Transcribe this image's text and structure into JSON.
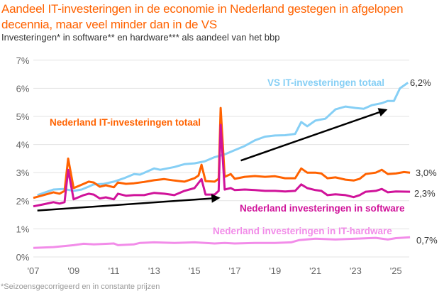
{
  "title": "Aandeel IT-investeringen in de economie in Nederland gestegen in afgelopen decennia, maar veel minder dan in de VS",
  "subtitle": "Investeringen* in software** en hardware*** als aandeel van het bbp",
  "footnote": "*Seizoensgecorrigeerd en in constante prijzen",
  "chart_data": {
    "type": "line",
    "xlim": [
      2007,
      2025.7
    ],
    "ylim": [
      0,
      7
    ],
    "grid": true,
    "yticks": [
      0,
      1,
      2,
      3,
      4,
      5,
      6,
      7
    ],
    "ytick_labels": [
      "0%",
      "1%",
      "2%",
      "3%",
      "4%",
      "5%",
      "6%",
      "7%"
    ],
    "xticks": [
      2007,
      2009,
      2011,
      2013,
      2015,
      2017,
      2019,
      2021,
      2023,
      2025
    ],
    "xtick_labels": [
      "'07",
      "'09",
      "'11",
      "'13",
      "'15",
      "'17",
      "'19",
      "'21",
      "'23",
      "'25"
    ],
    "series": [
      {
        "name": "VS IT-investeringen totaal",
        "color": "#86CFF5",
        "end_label": "6,2%",
        "points": [
          [
            2007.2,
            2.2
          ],
          [
            2007.6,
            2.3
          ],
          [
            2008,
            2.4
          ],
          [
            2008.5,
            2.42
          ],
          [
            2009,
            2.35
          ],
          [
            2009.4,
            2.4
          ],
          [
            2010,
            2.58
          ],
          [
            2010.5,
            2.6
          ],
          [
            2011,
            2.68
          ],
          [
            2011.5,
            2.8
          ],
          [
            2012,
            2.95
          ],
          [
            2012.3,
            2.93
          ],
          [
            2013,
            3.15
          ],
          [
            2013.3,
            3.1
          ],
          [
            2014,
            3.2
          ],
          [
            2014.5,
            3.3
          ],
          [
            2015,
            3.33
          ],
          [
            2015.5,
            3.4
          ],
          [
            2016,
            3.55
          ],
          [
            2016.5,
            3.65
          ],
          [
            2017,
            3.8
          ],
          [
            2017.5,
            3.95
          ],
          [
            2018,
            4.15
          ],
          [
            2018.5,
            4.28
          ],
          [
            2019,
            4.32
          ],
          [
            2019.5,
            4.33
          ],
          [
            2020,
            4.38
          ],
          [
            2020.3,
            4.8
          ],
          [
            2020.6,
            4.65
          ],
          [
            2021,
            4.85
          ],
          [
            2021.5,
            4.92
          ],
          [
            2022,
            5.25
          ],
          [
            2022.5,
            5.35
          ],
          [
            2023,
            5.3
          ],
          [
            2023.4,
            5.27
          ],
          [
            2023.8,
            5.4
          ],
          [
            2024.3,
            5.47
          ],
          [
            2024.6,
            5.55
          ],
          [
            2024.9,
            5.55
          ],
          [
            2025.2,
            6.0
          ],
          [
            2025.6,
            6.2
          ]
        ]
      },
      {
        "name": "Nederland IT-investeringen totaal",
        "color": "#FF6200",
        "end_label": "3,0%",
        "points": [
          [
            2007,
            2.1
          ],
          [
            2007.5,
            2.2
          ],
          [
            2008,
            2.3
          ],
          [
            2008.3,
            2.25
          ],
          [
            2008.55,
            2.35
          ],
          [
            2008.73,
            3.5
          ],
          [
            2009,
            2.45
          ],
          [
            2009.5,
            2.6
          ],
          [
            2009.75,
            2.68
          ],
          [
            2010,
            2.65
          ],
          [
            2010.3,
            2.5
          ],
          [
            2010.6,
            2.55
          ],
          [
            2011,
            2.48
          ],
          [
            2011.2,
            2.65
          ],
          [
            2011.6,
            2.6
          ],
          [
            2012,
            2.62
          ],
          [
            2012.5,
            2.67
          ],
          [
            2013,
            2.73
          ],
          [
            2013.5,
            2.77
          ],
          [
            2014,
            2.72
          ],
          [
            2014.5,
            2.68
          ],
          [
            2015,
            2.8
          ],
          [
            2015.2,
            2.9
          ],
          [
            2015.35,
            3.28
          ],
          [
            2015.55,
            2.7
          ],
          [
            2016,
            2.68
          ],
          [
            2016.2,
            2.78
          ],
          [
            2016.3,
            5.3
          ],
          [
            2016.5,
            2.85
          ],
          [
            2016.8,
            2.95
          ],
          [
            2017,
            2.78
          ],
          [
            2017.5,
            2.85
          ],
          [
            2018,
            2.88
          ],
          [
            2018.5,
            2.85
          ],
          [
            2019,
            2.87
          ],
          [
            2019.5,
            2.8
          ],
          [
            2020,
            2.8
          ],
          [
            2020.3,
            3.15
          ],
          [
            2020.6,
            3.0
          ],
          [
            2021,
            3.0
          ],
          [
            2021.3,
            2.97
          ],
          [
            2021.6,
            2.8
          ],
          [
            2022,
            2.83
          ],
          [
            2022.5,
            2.75
          ],
          [
            2022.9,
            2.72
          ],
          [
            2023.2,
            2.78
          ],
          [
            2023.5,
            2.95
          ],
          [
            2024,
            3.0
          ],
          [
            2024.3,
            3.1
          ],
          [
            2024.6,
            2.95
          ],
          [
            2025,
            2.97
          ],
          [
            2025.4,
            3.02
          ],
          [
            2025.7,
            3.0
          ]
        ]
      },
      {
        "name": "Nederland investeringen in software",
        "color": "#D0139A",
        "end_label": "2,3%",
        "points": [
          [
            2007,
            1.8
          ],
          [
            2007.5,
            1.87
          ],
          [
            2008,
            1.95
          ],
          [
            2008.3,
            1.9
          ],
          [
            2008.55,
            1.95
          ],
          [
            2008.73,
            3.1
          ],
          [
            2009,
            2.05
          ],
          [
            2009.5,
            2.2
          ],
          [
            2009.75,
            2.25
          ],
          [
            2010,
            2.22
          ],
          [
            2010.3,
            2.08
          ],
          [
            2010.6,
            2.12
          ],
          [
            2011,
            2.05
          ],
          [
            2011.2,
            2.25
          ],
          [
            2011.6,
            2.18
          ],
          [
            2012,
            2.2
          ],
          [
            2012.5,
            2.2
          ],
          [
            2013,
            2.28
          ],
          [
            2013.5,
            2.25
          ],
          [
            2014,
            2.2
          ],
          [
            2014.5,
            2.35
          ],
          [
            2015,
            2.45
          ],
          [
            2015.35,
            2.77
          ],
          [
            2015.55,
            2.22
          ],
          [
            2016,
            2.22
          ],
          [
            2016.2,
            2.35
          ],
          [
            2016.3,
            4.7
          ],
          [
            2016.5,
            2.4
          ],
          [
            2016.8,
            2.45
          ],
          [
            2017,
            2.38
          ],
          [
            2017.5,
            2.4
          ],
          [
            2018,
            2.38
          ],
          [
            2018.5,
            2.35
          ],
          [
            2019,
            2.35
          ],
          [
            2019.5,
            2.33
          ],
          [
            2020,
            2.35
          ],
          [
            2020.3,
            2.58
          ],
          [
            2020.6,
            2.45
          ],
          [
            2021,
            2.38
          ],
          [
            2021.3,
            2.35
          ],
          [
            2021.6,
            2.2
          ],
          [
            2022,
            2.23
          ],
          [
            2022.5,
            2.2
          ],
          [
            2022.9,
            2.13
          ],
          [
            2023.2,
            2.2
          ],
          [
            2023.5,
            2.32
          ],
          [
            2024,
            2.35
          ],
          [
            2024.3,
            2.42
          ],
          [
            2024.6,
            2.3
          ],
          [
            2025,
            2.33
          ],
          [
            2025.7,
            2.32
          ]
        ]
      },
      {
        "name": "Nederland investeringen in IT-hardware",
        "color": "#F28CE9",
        "end_label": "0,7%",
        "points": [
          [
            2007,
            0.32
          ],
          [
            2008,
            0.35
          ],
          [
            2009,
            0.42
          ],
          [
            2009.5,
            0.47
          ],
          [
            2010,
            0.45
          ],
          [
            2011,
            0.48
          ],
          [
            2011.2,
            0.42
          ],
          [
            2012,
            0.45
          ],
          [
            2012.3,
            0.5
          ],
          [
            2013,
            0.52
          ],
          [
            2014,
            0.5
          ],
          [
            2015,
            0.52
          ],
          [
            2016,
            0.48
          ],
          [
            2016.5,
            0.5
          ],
          [
            2017,
            0.48
          ],
          [
            2018,
            0.5
          ],
          [
            2019,
            0.5
          ],
          [
            2019.8,
            0.52
          ],
          [
            2020.2,
            0.6
          ],
          [
            2021,
            0.65
          ],
          [
            2022,
            0.62
          ],
          [
            2023,
            0.65
          ],
          [
            2024,
            0.68
          ],
          [
            2024.6,
            0.62
          ],
          [
            2025,
            0.67
          ],
          [
            2025.7,
            0.7
          ]
        ]
      }
    ],
    "trend_arrows": [
      {
        "from": [
          2007.2,
          1.65
        ],
        "to": [
          2016.2,
          2.1
        ]
      },
      {
        "from": [
          2017.3,
          3.43
        ],
        "to": [
          2024.5,
          5.23
        ]
      }
    ]
  }
}
